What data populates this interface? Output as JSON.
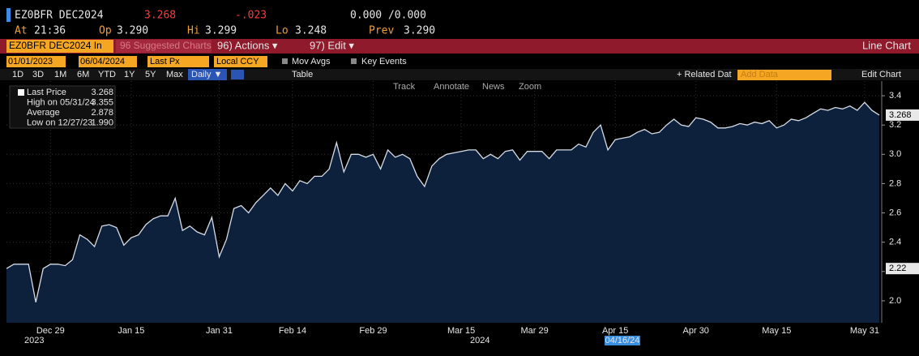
{
  "header": {
    "ticker": "EZ0BFR DEC2024",
    "last": "3.268",
    "change": "-.023",
    "bid_ask": "0.000 /0.000",
    "at_label": "At",
    "at": "21:36",
    "open_label": "Op",
    "open": "3.290",
    "high_label": "Hi",
    "high": "3.299",
    "low_label": "Lo",
    "low": "3.248",
    "prev_label": "Prev",
    "prev": "3.290"
  },
  "menu": {
    "security": "EZ0BFR DEC2024 In",
    "suggested": "96 Suggested Charts",
    "actions": "96) Actions ▾",
    "edit": "97) Edit ▾",
    "chart_type": "Line Chart"
  },
  "controls": {
    "start": "01/01/2023",
    "end": "06/04/2024",
    "field": "Last Px",
    "currency": "Local CCY",
    "mov_avgs": "Mov Avgs",
    "key_events": "Key Events"
  },
  "toolbar": {
    "periods": [
      "1D",
      "3D",
      "1M",
      "6M",
      "YTD",
      "1Y",
      "5Y",
      "Max"
    ],
    "frequency": "Daily ▼",
    "table": "Table",
    "related": "+ Related Dat",
    "add_data": "Add Data",
    "edit_chart": "Edit Chart"
  },
  "chart_tools": [
    "Track",
    "Annotate",
    "News",
    "Zoom"
  ],
  "legend": [
    {
      "label": "Last Price",
      "value": "3.268"
    },
    {
      "label": "High on 05/31/24",
      "value": "3.355"
    },
    {
      "label": "Average",
      "value": "2.878"
    },
    {
      "label": "Low on 12/27/23",
      "value": "1.990"
    }
  ],
  "chart_data": {
    "type": "area",
    "color": "#d6dce6",
    "fill": "#0d213d",
    "grid": true,
    "ylim": [
      1.85,
      3.5
    ],
    "yticks": [
      {
        "value": 2,
        "label": "2.0"
      },
      2.2,
      2.4,
      2.6,
      2.8,
      {
        "value": 3,
        "label": "3.0"
      },
      3.2,
      3.4
    ],
    "years": [
      "2023",
      "2024"
    ],
    "crosshair_date": "04/16/24",
    "first_tag": "2.22",
    "last_tag": "3.268",
    "categories": [
      null,
      null,
      null,
      null,
      null,
      null,
      "Dec 29",
      null,
      null,
      null,
      null,
      null,
      null,
      null,
      null,
      null,
      null,
      "Jan 15",
      null,
      null,
      null,
      null,
      null,
      null,
      null,
      null,
      null,
      null,
      null,
      "Jan 31",
      null,
      null,
      null,
      null,
      null,
      null,
      null,
      null,
      null,
      "Feb 14",
      null,
      null,
      null,
      null,
      null,
      null,
      null,
      null,
      null,
      null,
      "Feb 29",
      null,
      null,
      null,
      null,
      null,
      null,
      null,
      null,
      null,
      null,
      null,
      "Mar 15",
      null,
      null,
      null,
      null,
      null,
      null,
      null,
      null,
      null,
      "Mar 29",
      null,
      null,
      null,
      null,
      null,
      null,
      null,
      null,
      null,
      null,
      "Apr 15",
      null,
      null,
      null,
      null,
      null,
      null,
      null,
      null,
      null,
      null,
      "Apr 30",
      null,
      null,
      null,
      null,
      null,
      null,
      null,
      null,
      null,
      null,
      "May 15",
      null,
      null,
      null,
      null,
      null,
      null,
      null,
      null,
      null,
      null,
      null,
      "May 31",
      null,
      null
    ],
    "values": [
      2.22,
      2.25,
      2.25,
      2.25,
      1.99,
      2.22,
      2.25,
      2.25,
      2.24,
      2.28,
      2.45,
      2.42,
      2.37,
      2.51,
      2.52,
      2.5,
      2.38,
      2.43,
      2.45,
      2.52,
      2.56,
      2.58,
      2.58,
      2.7,
      2.48,
      2.51,
      2.47,
      2.45,
      2.57,
      2.3,
      2.42,
      2.63,
      2.65,
      2.6,
      2.67,
      2.72,
      2.77,
      2.72,
      2.8,
      2.75,
      2.82,
      2.8,
      2.85,
      2.85,
      2.9,
      3.08,
      2.88,
      3.0,
      3.0,
      2.98,
      3.0,
      2.9,
      3.03,
      2.98,
      3.0,
      2.97,
      2.85,
      2.78,
      2.92,
      2.97,
      3.0,
      3.01,
      3.02,
      3.03,
      3.03,
      2.97,
      3.0,
      2.97,
      3.02,
      3.03,
      2.96,
      3.02,
      3.02,
      3.02,
      2.97,
      3.03,
      3.03,
      3.03,
      3.07,
      3.05,
      3.15,
      3.2,
      3.03,
      3.1,
      3.11,
      3.12,
      3.15,
      3.17,
      3.14,
      3.15,
      3.2,
      3.24,
      3.2,
      3.19,
      3.25,
      3.24,
      3.22,
      3.18,
      3.18,
      3.19,
      3.21,
      3.2,
      3.22,
      3.21,
      3.23,
      3.18,
      3.2,
      3.24,
      3.23,
      3.25,
      3.28,
      3.31,
      3.3,
      3.32,
      3.31,
      3.33,
      3.3,
      3.355,
      3.3,
      3.268
    ]
  }
}
